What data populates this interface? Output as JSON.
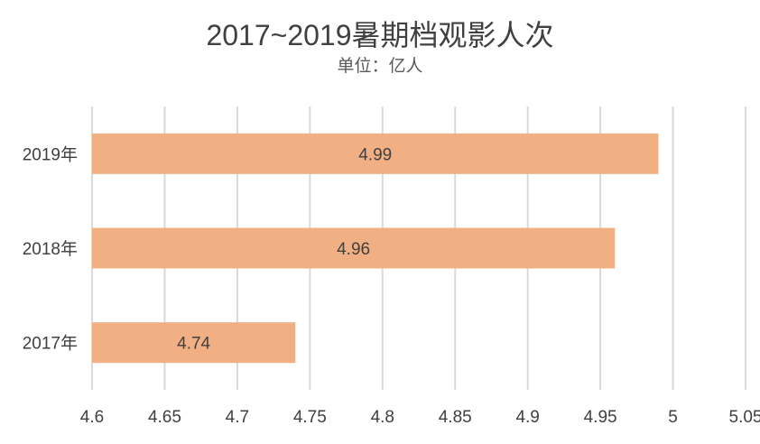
{
  "chart_data": {
    "type": "bar",
    "orientation": "horizontal",
    "title": "2017~2019暑期档观影人次",
    "subtitle": "单位：亿人",
    "categories": [
      "2019年",
      "2018年",
      "2017年"
    ],
    "values": [
      4.99,
      4.96,
      4.74
    ],
    "data_labels": [
      "4.99",
      "4.96",
      "4.74"
    ],
    "xlim": [
      4.6,
      5.05
    ],
    "x_ticks": [
      "4.6",
      "4.65",
      "4.7",
      "4.75",
      "4.8",
      "4.85",
      "4.9",
      "4.95",
      "5",
      "5.05"
    ],
    "grid": true,
    "legend": "none",
    "colors": {
      "bar": "#F0B084",
      "grid": "#D9D9D9",
      "text": "#404040"
    }
  }
}
